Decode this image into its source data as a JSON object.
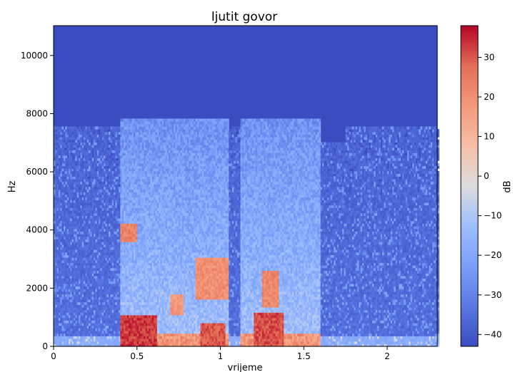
{
  "chart_data": {
    "type": "heatmap",
    "title": "ljutit govor",
    "xlabel": "vrijeme",
    "ylabel": "Hz",
    "xlim": [
      0,
      2.3
    ],
    "ylim": [
      0,
      11025
    ],
    "x_ticks": [
      0,
      0.5,
      1,
      1.5,
      2
    ],
    "x_tick_labels": [
      "0",
      "0.5",
      "1",
      "1.5",
      "2"
    ],
    "y_ticks": [
      0,
      2000,
      4000,
      6000,
      8000,
      10000
    ],
    "y_tick_labels": [
      "0",
      "2000",
      "4000",
      "6000",
      "8000",
      "10000"
    ],
    "colorbar": {
      "label": "dB",
      "range": [
        -43,
        38
      ],
      "ticks": [
        30,
        20,
        10,
        0,
        -10,
        -20,
        -30,
        -40
      ],
      "tick_labels": [
        "30",
        "20",
        "10",
        "0",
        "−10",
        "−20",
        "−30",
        "−40"
      ],
      "colormap": "coolwarm"
    },
    "grid": false,
    "speech_segments_s": [
      [
        0.4,
        0.62
      ],
      [
        0.62,
        0.82
      ],
      [
        0.82,
        1.05
      ],
      [
        1.12,
        1.38
      ],
      [
        1.38,
        1.6
      ]
    ],
    "energy_regions": [
      {
        "t": [
          0.4,
          0.62
        ],
        "f": [
          0,
          1000
        ],
        "db": 35
      },
      {
        "t": [
          0.88,
          1.03
        ],
        "f": [
          0,
          800
        ],
        "db": 32
      },
      {
        "t": [
          1.2,
          1.38
        ],
        "f": [
          0,
          1100
        ],
        "db": 33
      },
      {
        "t": [
          0.4,
          0.5
        ],
        "f": [
          3600,
          4200
        ],
        "db": 25
      },
      {
        "t": [
          0.85,
          1.05
        ],
        "f": [
          1600,
          3000
        ],
        "db": 22
      },
      {
        "t": [
          1.25,
          1.35
        ],
        "f": [
          1300,
          2600
        ],
        "db": 24
      },
      {
        "t": [
          0.7,
          0.78
        ],
        "f": [
          1000,
          1800
        ],
        "db": 20
      }
    ]
  }
}
